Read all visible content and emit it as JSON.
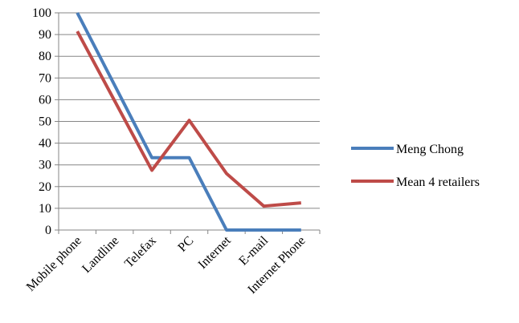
{
  "chart_data": {
    "type": "line",
    "title": "",
    "xlabel": "",
    "ylabel": "",
    "categories": [
      "Mobile phone",
      "Landline",
      "Telefax",
      "PC",
      "Internet",
      "E-mail",
      "Internet Phone"
    ],
    "ylim": [
      0,
      100
    ],
    "yticks": [
      0,
      10,
      20,
      30,
      40,
      50,
      60,
      70,
      80,
      90,
      100
    ],
    "grid": true,
    "legend_position": "right",
    "series": [
      {
        "name": "Meng Chong",
        "color": "#4a7ebb",
        "values": [
          100,
          66.7,
          33.3,
          33.3,
          0,
          0,
          0
        ]
      },
      {
        "name": "Mean 4 retailers",
        "color": "#be4b48",
        "values": [
          91.5,
          59.5,
          27.5,
          50.5,
          26,
          11,
          12.5
        ]
      }
    ]
  }
}
